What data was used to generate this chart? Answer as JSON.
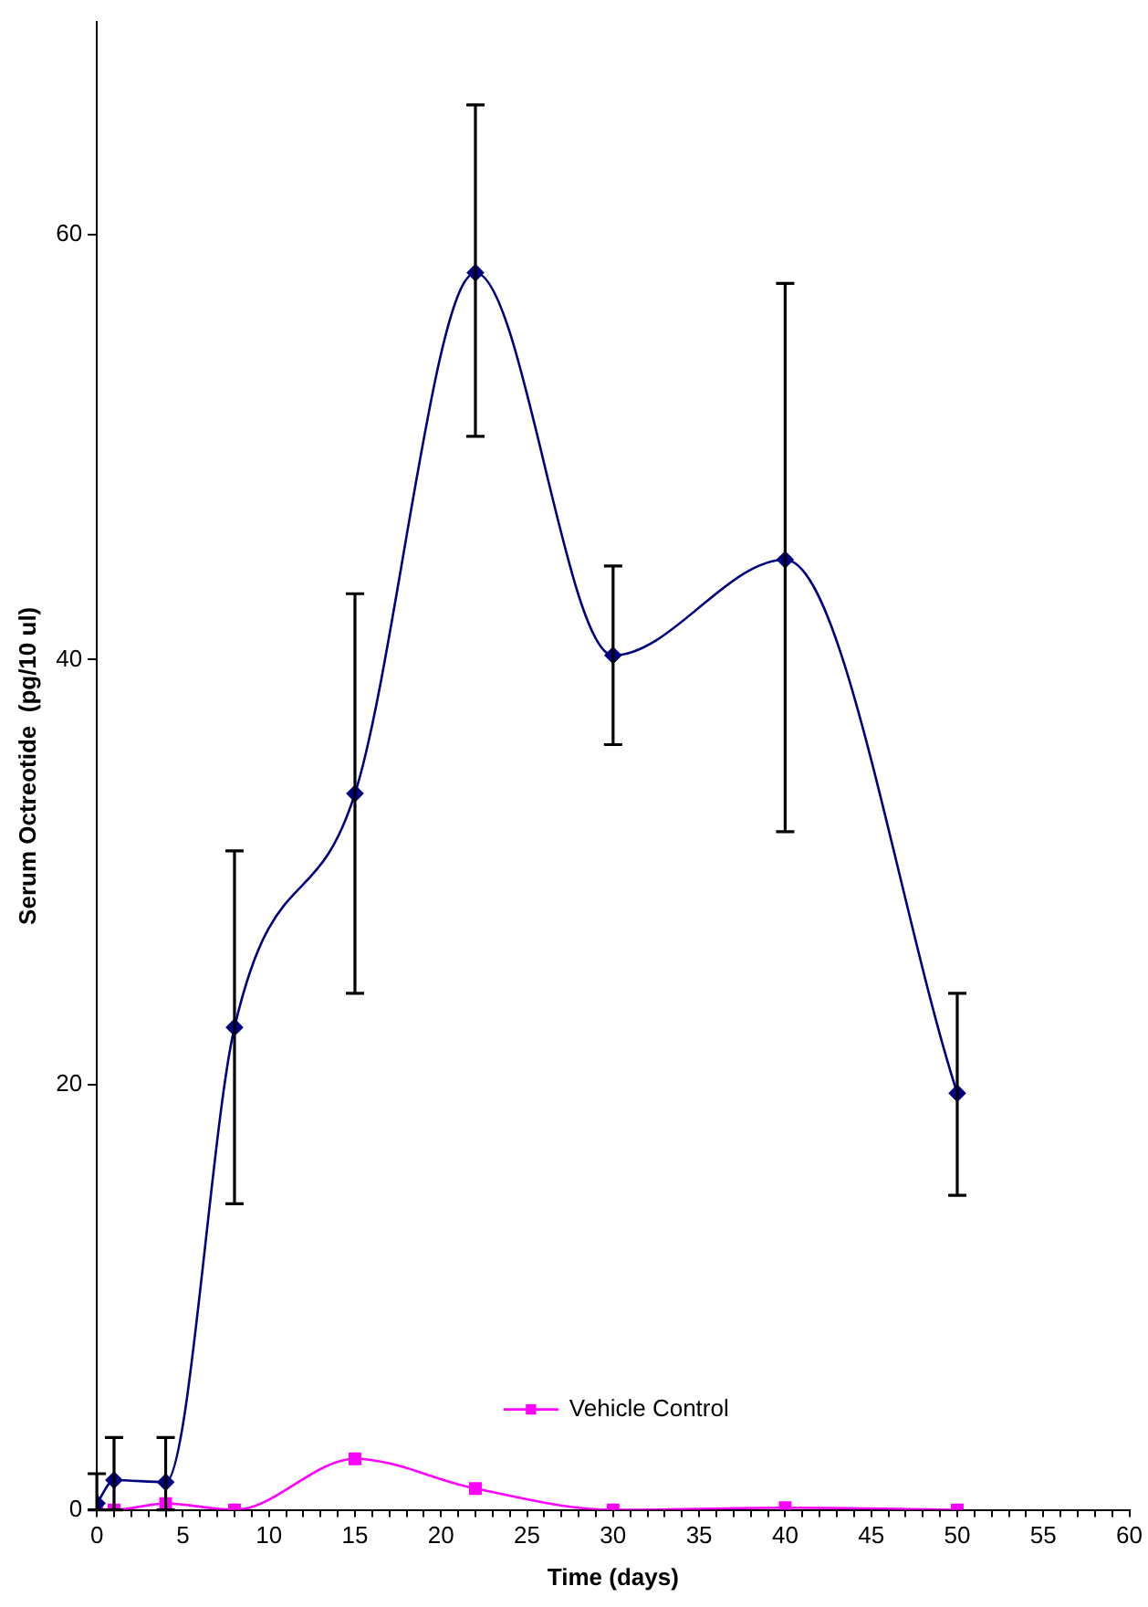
{
  "chart_data": {
    "type": "line",
    "xlabel": "Time (days)",
    "ylabel": "Serum Octreotide  (pg/10 ul)",
    "x": [
      0,
      1,
      4,
      8,
      15,
      22,
      30,
      40,
      50
    ],
    "series": [
      {
        "color": "#000080",
        "marker": "diamond",
        "values": [
          0.3,
          1.4,
          1.3,
          22.7,
          33.7,
          58.2,
          40.2,
          44.7,
          19.6
        ],
        "errors": [
          [
            0,
            1.7
          ],
          [
            0,
            3.4
          ],
          [
            0,
            3.4
          ],
          [
            14.4,
            31.0
          ],
          [
            24.3,
            43.1
          ],
          [
            50.5,
            66.1
          ],
          [
            36.0,
            44.4
          ],
          [
            31.9,
            57.7
          ],
          [
            14.8,
            24.3
          ]
        ]
      },
      {
        "name": "Vehicle Control",
        "color": "#ff00ff",
        "marker": "square",
        "values": [
          0,
          0,
          0.3,
          0,
          2.4,
          1.0,
          0,
          0.1,
          0
        ]
      }
    ],
    "xlim": [
      0,
      60
    ],
    "xticks": [
      0,
      {
        "value": 1,
        "label": null
      },
      {
        "value": 2,
        "label": null
      },
      {
        "value": 3,
        "label": null
      },
      {
        "value": 4,
        "label": null
      },
      5,
      {
        "value": 6,
        "label": null
      },
      {
        "value": 7,
        "label": null
      },
      {
        "value": 8,
        "label": null
      },
      {
        "value": 9,
        "label": null
      },
      10,
      {
        "value": 11,
        "label": null
      },
      {
        "value": 12,
        "label": null
      },
      {
        "value": 13,
        "label": null
      },
      {
        "value": 14,
        "label": null
      },
      15,
      {
        "value": 16,
        "label": null
      },
      {
        "value": 17,
        "label": null
      },
      {
        "value": 18,
        "label": null
      },
      {
        "value": 19,
        "label": null
      },
      20,
      {
        "value": 21,
        "label": null
      },
      {
        "value": 22,
        "label": null
      },
      {
        "value": 23,
        "label": null
      },
      {
        "value": 24,
        "label": null
      },
      25,
      {
        "value": 26,
        "label": null
      },
      {
        "value": 27,
        "label": null
      },
      {
        "value": 28,
        "label": null
      },
      {
        "value": 29,
        "label": null
      },
      30,
      {
        "value": 31,
        "label": null
      },
      {
        "value": 32,
        "label": null
      },
      {
        "value": 33,
        "label": null
      },
      {
        "value": 34,
        "label": null
      },
      35,
      {
        "value": 36,
        "label": null
      },
      {
        "value": 37,
        "label": null
      },
      {
        "value": 38,
        "label": null
      },
      {
        "value": 39,
        "label": null
      },
      40,
      {
        "value": 41,
        "label": null
      },
      {
        "value": 42,
        "label": null
      },
      {
        "value": 43,
        "label": null
      },
      {
        "value": 44,
        "label": null
      },
      45,
      {
        "value": 46,
        "label": null
      },
      {
        "value": 47,
        "label": null
      },
      {
        "value": 48,
        "label": null
      },
      {
        "value": 49,
        "label": null
      },
      50,
      {
        "value": 51,
        "label": null
      },
      {
        "value": 52,
        "label": null
      },
      {
        "value": 53,
        "label": null
      },
      {
        "value": 54,
        "label": null
      },
      55,
      {
        "value": 56,
        "label": null
      },
      {
        "value": 57,
        "label": null
      },
      {
        "value": 58,
        "label": null
      },
      {
        "value": 59,
        "label": null
      },
      60
    ],
    "ylim": [
      0,
      70
    ],
    "yticks": [
      0,
      20,
      40,
      60
    ],
    "grid": false,
    "legend": "bottom",
    "line_style": "solid"
  }
}
